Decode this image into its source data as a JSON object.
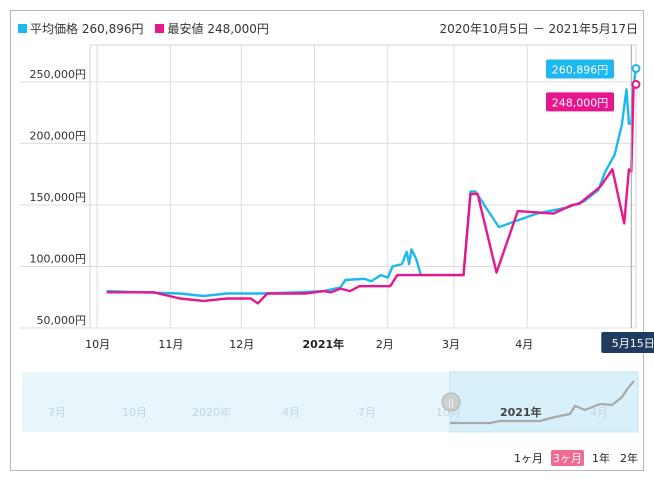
{
  "legend": {
    "avg_label": "平均価格",
    "avg_value": "260,896円",
    "min_label": "最安値",
    "min_value": "248,000円"
  },
  "date_range": "2020年10月5日 － 2021年5月17日",
  "zoom_buttons": [
    {
      "label": "1ヶ月",
      "active": false
    },
    {
      "label": "3ヶ月",
      "active": true
    },
    {
      "label": "1年",
      "active": false
    },
    {
      "label": "2年",
      "active": false
    }
  ],
  "colors": {
    "average": "#1cb8ee",
    "minimum": "#e8168d",
    "tooltip_date_bg": "#1f3b5f",
    "navigator_bg": "#e8f5fb",
    "navigator_selected": "#d8f0fa"
  },
  "chart_data": {
    "type": "line",
    "title": "",
    "xlabel": "",
    "ylabel": "",
    "ylim": [
      50000,
      280000
    ],
    "yticks": [
      50000,
      100000,
      150000,
      200000,
      250000
    ],
    "ytick_labels": [
      "50,000円",
      "100,000円",
      "150,000円",
      "200,000円",
      "250,000円"
    ],
    "xlim": [
      "2020-09-28",
      "2021-05-17"
    ],
    "xticks": [
      {
        "date": "2020-10-01",
        "label": "10月",
        "bold": false
      },
      {
        "date": "2020-11-01",
        "label": "11月",
        "bold": false
      },
      {
        "date": "2020-12-01",
        "label": "12月",
        "bold": false
      },
      {
        "date": "2021-01-01",
        "label": "2021年",
        "bold": true
      },
      {
        "date": "2021-02-01",
        "label": "2月",
        "bold": false
      },
      {
        "date": "2021-03-01",
        "label": "3月",
        "bold": false
      },
      {
        "date": "2021-04-01",
        "label": "4月",
        "bold": false
      }
    ],
    "grid": true,
    "crosshair": {
      "date": "2021-05-15",
      "label": "5月15日"
    },
    "end_labels": [
      {
        "series": "平均価格",
        "text": "260,896円"
      },
      {
        "series": "最安値",
        "text": "248,000円"
      }
    ],
    "series": [
      {
        "name": "平均価格",
        "color": "#1cb8ee",
        "points": [
          [
            "2020-10-05",
            80000
          ],
          [
            "2020-10-20",
            79000
          ],
          [
            "2020-11-05",
            78000
          ],
          [
            "2020-11-15",
            76000
          ],
          [
            "2020-11-25",
            78000
          ],
          [
            "2020-12-10",
            78000
          ],
          [
            "2020-12-25",
            79000
          ],
          [
            "2021-01-05",
            80000
          ],
          [
            "2021-01-12",
            83000
          ],
          [
            "2021-01-14",
            89000
          ],
          [
            "2021-01-22",
            90000
          ],
          [
            "2021-01-25",
            88000
          ],
          [
            "2021-01-29",
            93000
          ],
          [
            "2021-02-01",
            91000
          ],
          [
            "2021-02-03",
            100000
          ],
          [
            "2021-02-07",
            102000
          ],
          [
            "2021-02-09",
            112000
          ],
          [
            "2021-02-10",
            102000
          ],
          [
            "2021-02-11",
            114000
          ],
          [
            "2021-02-13",
            106000
          ],
          [
            "2021-02-15",
            93000
          ],
          [
            "2021-02-22",
            93000
          ],
          [
            "2021-02-28",
            93000
          ],
          [
            "2021-03-05",
            93000
          ],
          [
            "2021-03-08",
            161000
          ],
          [
            "2021-03-10",
            161000
          ],
          [
            "2021-03-20",
            132000
          ],
          [
            "2021-04-05",
            143000
          ],
          [
            "2021-04-18",
            148000
          ],
          [
            "2021-04-25",
            153000
          ],
          [
            "2021-05-01",
            162000
          ],
          [
            "2021-05-04",
            177000
          ],
          [
            "2021-05-08",
            191000
          ],
          [
            "2021-05-11",
            215000
          ],
          [
            "2021-05-13",
            244000
          ],
          [
            "2021-05-14",
            216000
          ],
          [
            "2021-05-15",
            216000
          ],
          [
            "2021-05-16",
            248000
          ],
          [
            "2021-05-17",
            260896
          ]
        ]
      },
      {
        "name": "最安値",
        "color": "#e8168d",
        "points": [
          [
            "2020-10-05",
            79000
          ],
          [
            "2020-10-25",
            79000
          ],
          [
            "2020-11-05",
            74000
          ],
          [
            "2020-11-15",
            72000
          ],
          [
            "2020-11-25",
            74000
          ],
          [
            "2020-12-05",
            74000
          ],
          [
            "2020-12-08",
            70000
          ],
          [
            "2020-12-12",
            78000
          ],
          [
            "2020-12-28",
            78000
          ],
          [
            "2021-01-05",
            80000
          ],
          [
            "2021-01-08",
            79000
          ],
          [
            "2021-01-12",
            82000
          ],
          [
            "2021-01-16",
            80000
          ],
          [
            "2021-01-20",
            84000
          ],
          [
            "2021-01-31",
            84000
          ],
          [
            "2021-02-02",
            84000
          ],
          [
            "2021-02-05",
            93000
          ],
          [
            "2021-02-15",
            93000
          ],
          [
            "2021-03-05",
            93000
          ],
          [
            "2021-03-08",
            159000
          ],
          [
            "2021-03-11",
            159000
          ],
          [
            "2021-03-19",
            95000
          ],
          [
            "2021-03-28",
            145000
          ],
          [
            "2021-04-12",
            143000
          ],
          [
            "2021-04-20",
            150000
          ],
          [
            "2021-04-23",
            151000
          ],
          [
            "2021-05-02",
            165000
          ],
          [
            "2021-05-07",
            179000
          ],
          [
            "2021-05-12",
            135000
          ],
          [
            "2021-05-14",
            179000
          ],
          [
            "2021-05-15",
            177000
          ],
          [
            "2021-05-16",
            248000
          ],
          [
            "2021-05-17",
            248000
          ]
        ]
      }
    ],
    "navigator": {
      "tick_labels": [
        "7月",
        "10月",
        "2020年",
        "4月",
        "7月",
        "10月",
        "2021年",
        "4月"
      ]
    }
  }
}
